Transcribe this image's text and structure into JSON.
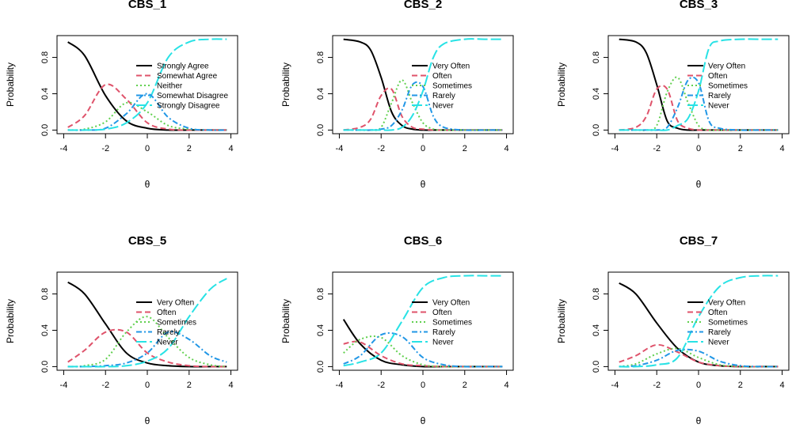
{
  "chart_data": [
    {
      "type": "line",
      "title": "CBS_1",
      "xlabel": "θ",
      "ylabel": "Probability",
      "xlim": [
        -4,
        4
      ],
      "ylim": [
        0,
        1
      ],
      "xticks": [
        "-4",
        "-2",
        "0",
        "2",
        "4"
      ],
      "yticks": [
        "0.0",
        "0.4",
        "0.8"
      ],
      "x": [
        -3.8,
        -3,
        -2,
        -1,
        0,
        1,
        2,
        3,
        3.8
      ],
      "series": [
        {
          "name": "Strongly Agree",
          "color": "#000000",
          "values": [
            0.97,
            0.82,
            0.38,
            0.1,
            0.02,
            0.0,
            0.0,
            0.0,
            0.0
          ]
        },
        {
          "name": "Somewhat Agree",
          "color": "#DF536B",
          "values": [
            0.03,
            0.16,
            0.5,
            0.34,
            0.08,
            0.01,
            0.0,
            0.0,
            0.0
          ]
        },
        {
          "name": "Neither",
          "color": "#61D04F",
          "values": [
            0.0,
            0.01,
            0.09,
            0.3,
            0.2,
            0.05,
            0.01,
            0.0,
            0.0
          ]
        },
        {
          "name": "Somewhat Disagree",
          "color": "#2297E6",
          "values": [
            0.0,
            0.0,
            0.02,
            0.18,
            0.4,
            0.14,
            0.02,
            0.0,
            0.0
          ]
        },
        {
          "name": "Strongly Disagree",
          "color": "#28E2E5",
          "values": [
            0.0,
            0.0,
            0.01,
            0.08,
            0.3,
            0.8,
            0.97,
            1.0,
            1.0
          ]
        }
      ]
    },
    {
      "type": "line",
      "title": "CBS_2",
      "xlabel": "θ",
      "ylabel": "Probability",
      "xlim": [
        -4,
        4
      ],
      "ylim": [
        0,
        1
      ],
      "xticks": [
        "-4",
        "-2",
        "0",
        "2",
        "4"
      ],
      "yticks": [
        "0.0",
        "0.4",
        "0.8"
      ],
      "x": [
        -3.8,
        -3,
        -2.5,
        -2,
        -1.5,
        -1,
        -0.5,
        0,
        0.5,
        1,
        2,
        3,
        3.8
      ],
      "series": [
        {
          "name": "Very Often",
          "color": "#000000",
          "values": [
            1.0,
            0.97,
            0.88,
            0.58,
            0.2,
            0.05,
            0.01,
            0.0,
            0.0,
            0.0,
            0.0,
            0.0,
            0.0
          ]
        },
        {
          "name": "Often",
          "color": "#DF536B",
          "values": [
            0.0,
            0.03,
            0.12,
            0.38,
            0.45,
            0.15,
            0.03,
            0.01,
            0.0,
            0.0,
            0.0,
            0.0,
            0.0
          ]
        },
        {
          "name": "Sometimes",
          "color": "#61D04F",
          "values": [
            0.0,
            0.0,
            0.0,
            0.03,
            0.3,
            0.55,
            0.3,
            0.08,
            0.01,
            0.0,
            0.0,
            0.0,
            0.0
          ]
        },
        {
          "name": "Rarely",
          "color": "#2297E6",
          "values": [
            0.0,
            0.0,
            0.0,
            0.01,
            0.05,
            0.22,
            0.5,
            0.48,
            0.15,
            0.03,
            0.0,
            0.0,
            0.0
          ]
        },
        {
          "name": "Never",
          "color": "#28E2E5",
          "values": [
            0.0,
            0.0,
            0.0,
            0.0,
            0.0,
            0.03,
            0.16,
            0.43,
            0.8,
            0.95,
            1.0,
            1.0,
            1.0
          ]
        }
      ]
    },
    {
      "type": "line",
      "title": "CBS_3",
      "xlabel": "θ",
      "ylabel": "Probability",
      "xlim": [
        -4,
        4
      ],
      "ylim": [
        0,
        1
      ],
      "xticks": [
        "-4",
        "-2",
        "0",
        "2",
        "4"
      ],
      "yticks": [
        "0.0",
        "0.4",
        "0.8"
      ],
      "x": [
        -3.8,
        -3,
        -2.5,
        -2,
        -1.5,
        -1,
        -0.5,
        0,
        0.5,
        1,
        2,
        3,
        3.8
      ],
      "series": [
        {
          "name": "Very Often",
          "color": "#000000",
          "values": [
            1.0,
            0.97,
            0.85,
            0.5,
            0.1,
            0.02,
            0.0,
            0.0,
            0.0,
            0.0,
            0.0,
            0.0,
            0.0
          ]
        },
        {
          "name": "Often",
          "color": "#DF536B",
          "values": [
            0.0,
            0.03,
            0.15,
            0.45,
            0.45,
            0.1,
            0.02,
            0.0,
            0.0,
            0.0,
            0.0,
            0.0,
            0.0
          ]
        },
        {
          "name": "Sometimes",
          "color": "#61D04F",
          "values": [
            0.0,
            0.0,
            0.0,
            0.05,
            0.42,
            0.58,
            0.3,
            0.05,
            0.0,
            0.0,
            0.0,
            0.0,
            0.0
          ]
        },
        {
          "name": "Rarely",
          "color": "#2297E6",
          "values": [
            0.0,
            0.0,
            0.0,
            0.0,
            0.03,
            0.25,
            0.55,
            0.52,
            0.1,
            0.02,
            0.0,
            0.0,
            0.0
          ]
        },
        {
          "name": "Never",
          "color": "#28E2E5",
          "values": [
            0.0,
            0.0,
            0.0,
            0.0,
            0.0,
            0.05,
            0.13,
            0.43,
            0.9,
            0.98,
            1.0,
            1.0,
            1.0
          ]
        }
      ]
    },
    {
      "type": "line",
      "title": "CBS_5",
      "xlabel": "θ",
      "ylabel": "Probability",
      "xlim": [
        -4,
        4
      ],
      "ylim": [
        0,
        1
      ],
      "xticks": [
        "-4",
        "-2",
        "0",
        "2",
        "4"
      ],
      "yticks": [
        "0.0",
        "0.4",
        "0.8"
      ],
      "x": [
        -3.8,
        -3,
        -2,
        -1,
        0,
        1,
        2,
        3,
        3.8
      ],
      "series": [
        {
          "name": "Very Often",
          "color": "#000000",
          "values": [
            0.93,
            0.8,
            0.47,
            0.15,
            0.04,
            0.01,
            0.0,
            0.0,
            0.0
          ]
        },
        {
          "name": "Often",
          "color": "#DF536B",
          "values": [
            0.05,
            0.18,
            0.38,
            0.38,
            0.15,
            0.05,
            0.01,
            0.0,
            0.0
          ]
        },
        {
          "name": "Sometimes",
          "color": "#61D04F",
          "values": [
            0.0,
            0.01,
            0.08,
            0.38,
            0.55,
            0.32,
            0.1,
            0.02,
            0.0
          ]
        },
        {
          "name": "Rarely",
          "color": "#2297E6",
          "values": [
            0.0,
            0.0,
            0.01,
            0.04,
            0.15,
            0.38,
            0.3,
            0.12,
            0.05
          ]
        },
        {
          "name": "Never",
          "color": "#28E2E5",
          "values": [
            0.0,
            0.0,
            0.0,
            0.01,
            0.06,
            0.2,
            0.55,
            0.85,
            0.97
          ]
        }
      ]
    },
    {
      "type": "line",
      "title": "CBS_6",
      "xlabel": "θ",
      "ylabel": "Probability",
      "xlim": [
        -4,
        4
      ],
      "ylim": [
        0,
        1
      ],
      "xticks": [
        "-4",
        "-2",
        "0",
        "2",
        "4"
      ],
      "yticks": [
        "0.0",
        "0.4",
        "0.8"
      ],
      "x": [
        -3.8,
        -3,
        -2,
        -1,
        0,
        1,
        2,
        3,
        3.8
      ],
      "series": [
        {
          "name": "Very Often",
          "color": "#000000",
          "values": [
            0.52,
            0.25,
            0.07,
            0.02,
            0.0,
            0.0,
            0.0,
            0.0,
            0.0
          ]
        },
        {
          "name": "Often",
          "color": "#DF536B",
          "values": [
            0.25,
            0.27,
            0.12,
            0.03,
            0.01,
            0.0,
            0.0,
            0.0,
            0.0
          ]
        },
        {
          "name": "Sometimes",
          "color": "#61D04F",
          "values": [
            0.15,
            0.3,
            0.32,
            0.12,
            0.02,
            0.0,
            0.0,
            0.0,
            0.0
          ]
        },
        {
          "name": "Rarely",
          "color": "#2297E6",
          "values": [
            0.03,
            0.12,
            0.35,
            0.33,
            0.1,
            0.02,
            0.0,
            0.0,
            0.0
          ]
        },
        {
          "name": "Never",
          "color": "#28E2E5",
          "values": [
            0.01,
            0.05,
            0.15,
            0.5,
            0.87,
            0.98,
            1.0,
            1.0,
            1.0
          ]
        }
      ]
    },
    {
      "type": "line",
      "title": "CBS_7",
      "xlabel": "θ",
      "ylabel": "Probability",
      "xlim": [
        -4,
        4
      ],
      "ylim": [
        0,
        1
      ],
      "xticks": [
        "-4",
        "-2",
        "0",
        "2",
        "4"
      ],
      "yticks": [
        "0.0",
        "0.4",
        "0.8"
      ],
      "x": [
        -3.8,
        -3,
        -2,
        -1,
        0,
        1,
        2,
        3,
        3.8
      ],
      "series": [
        {
          "name": "Very Often",
          "color": "#000000",
          "values": [
            0.92,
            0.8,
            0.48,
            0.2,
            0.05,
            0.01,
            0.0,
            0.0,
            0.0
          ]
        },
        {
          "name": "Often",
          "color": "#DF536B",
          "values": [
            0.05,
            0.12,
            0.24,
            0.16,
            0.05,
            0.01,
            0.0,
            0.0,
            0.0
          ]
        },
        {
          "name": "Sometimes",
          "color": "#61D04F",
          "values": [
            0.0,
            0.03,
            0.14,
            0.2,
            0.1,
            0.02,
            0.0,
            0.0,
            0.0
          ]
        },
        {
          "name": "Rarely",
          "color": "#2297E6",
          "values": [
            0.0,
            0.01,
            0.07,
            0.18,
            0.17,
            0.06,
            0.01,
            0.0,
            0.0
          ]
        },
        {
          "name": "Never",
          "color": "#28E2E5",
          "values": [
            0.0,
            0.0,
            0.02,
            0.1,
            0.55,
            0.88,
            0.98,
            1.0,
            1.0
          ]
        }
      ]
    }
  ]
}
